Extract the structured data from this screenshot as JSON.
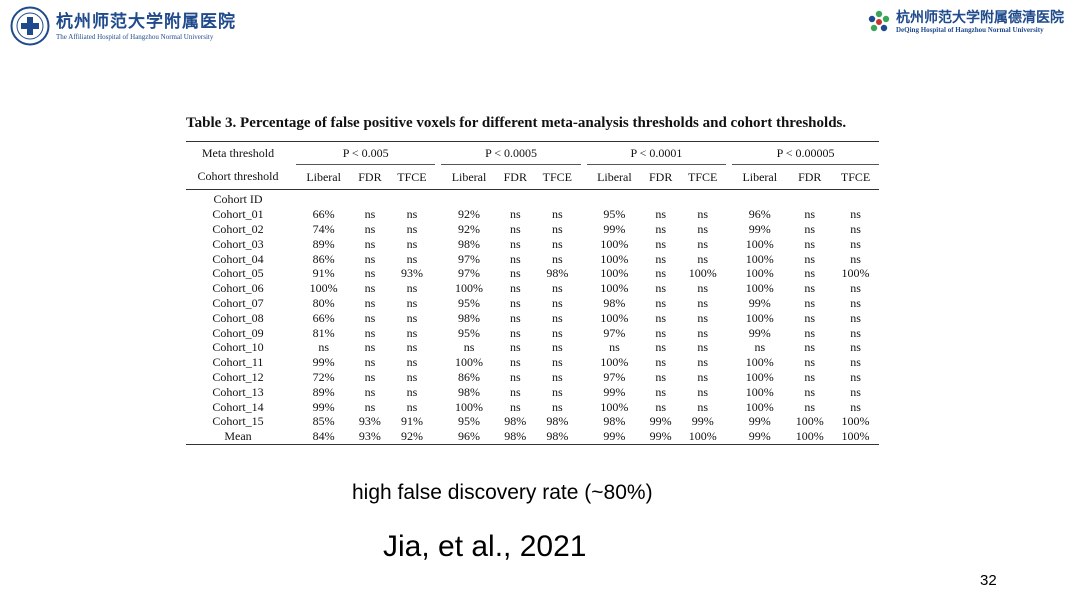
{
  "header": {
    "left_logo_cn": "杭州师范大学附属医院",
    "left_logo_en": "The Affiliated Hospital of Hangzhou Normal University",
    "right_logo_cn": "杭州师范大学附属德清医院",
    "right_logo_en": "DeQing Hospital of Hangzhou Normal University"
  },
  "table": {
    "title": "Table 3. Percentage of false positive voxels for different meta-analysis thresholds and cohort thresholds.",
    "meta_label": "Meta threshold",
    "cohort_label": "Cohort threshold",
    "meta_thresholds": [
      "P < 0.005",
      "P < 0.0005",
      "P < 0.0001",
      "P < 0.00005"
    ],
    "methods": [
      "Liberal",
      "FDR",
      "TFCE"
    ],
    "cohort_id_label": "Cohort ID",
    "rows": [
      {
        "id": "Cohort_01",
        "v": [
          "66%",
          "ns",
          "ns",
          "92%",
          "ns",
          "ns",
          "95%",
          "ns",
          "ns",
          "96%",
          "ns",
          "ns"
        ]
      },
      {
        "id": "Cohort_02",
        "v": [
          "74%",
          "ns",
          "ns",
          "92%",
          "ns",
          "ns",
          "99%",
          "ns",
          "ns",
          "99%",
          "ns",
          "ns"
        ]
      },
      {
        "id": "Cohort_03",
        "v": [
          "89%",
          "ns",
          "ns",
          "98%",
          "ns",
          "ns",
          "100%",
          "ns",
          "ns",
          "100%",
          "ns",
          "ns"
        ]
      },
      {
        "id": "Cohort_04",
        "v": [
          "86%",
          "ns",
          "ns",
          "97%",
          "ns",
          "ns",
          "100%",
          "ns",
          "ns",
          "100%",
          "ns",
          "ns"
        ]
      },
      {
        "id": "Cohort_05",
        "v": [
          "91%",
          "ns",
          "93%",
          "97%",
          "ns",
          "98%",
          "100%",
          "ns",
          "100%",
          "100%",
          "ns",
          "100%"
        ]
      },
      {
        "id": "Cohort_06",
        "v": [
          "100%",
          "ns",
          "ns",
          "100%",
          "ns",
          "ns",
          "100%",
          "ns",
          "ns",
          "100%",
          "ns",
          "ns"
        ]
      },
      {
        "id": "Cohort_07",
        "v": [
          "80%",
          "ns",
          "ns",
          "95%",
          "ns",
          "ns",
          "98%",
          "ns",
          "ns",
          "99%",
          "ns",
          "ns"
        ]
      },
      {
        "id": "Cohort_08",
        "v": [
          "66%",
          "ns",
          "ns",
          "98%",
          "ns",
          "ns",
          "100%",
          "ns",
          "ns",
          "100%",
          "ns",
          "ns"
        ]
      },
      {
        "id": "Cohort_09",
        "v": [
          "81%",
          "ns",
          "ns",
          "95%",
          "ns",
          "ns",
          "97%",
          "ns",
          "ns",
          "99%",
          "ns",
          "ns"
        ]
      },
      {
        "id": "Cohort_10",
        "v": [
          "ns",
          "ns",
          "ns",
          "ns",
          "ns",
          "ns",
          "ns",
          "ns",
          "ns",
          "ns",
          "ns",
          "ns"
        ]
      },
      {
        "id": "Cohort_11",
        "v": [
          "99%",
          "ns",
          "ns",
          "100%",
          "ns",
          "ns",
          "100%",
          "ns",
          "ns",
          "100%",
          "ns",
          "ns"
        ]
      },
      {
        "id": "Cohort_12",
        "v": [
          "72%",
          "ns",
          "ns",
          "86%",
          "ns",
          "ns",
          "97%",
          "ns",
          "ns",
          "100%",
          "ns",
          "ns"
        ]
      },
      {
        "id": "Cohort_13",
        "v": [
          "89%",
          "ns",
          "ns",
          "98%",
          "ns",
          "ns",
          "99%",
          "ns",
          "ns",
          "100%",
          "ns",
          "ns"
        ]
      },
      {
        "id": "Cohort_14",
        "v": [
          "99%",
          "ns",
          "ns",
          "100%",
          "ns",
          "ns",
          "100%",
          "ns",
          "ns",
          "100%",
          "ns",
          "ns"
        ]
      },
      {
        "id": "Cohort_15",
        "v": [
          "85%",
          "93%",
          "91%",
          "95%",
          "98%",
          "98%",
          "98%",
          "99%",
          "99%",
          "99%",
          "100%",
          "100%"
        ]
      },
      {
        "id": "Mean",
        "v": [
          "84%",
          "93%",
          "92%",
          "96%",
          "98%",
          "98%",
          "99%",
          "99%",
          "100%",
          "99%",
          "100%",
          "100%"
        ]
      }
    ]
  },
  "caption": "high false discovery rate (~80%)",
  "citation": "Jia, et al., 2021",
  "page_number": "32",
  "colors": {
    "logo_blue": "#1f4a8c",
    "logo_green": "#3aa55a",
    "logo_red": "#c8322b"
  }
}
